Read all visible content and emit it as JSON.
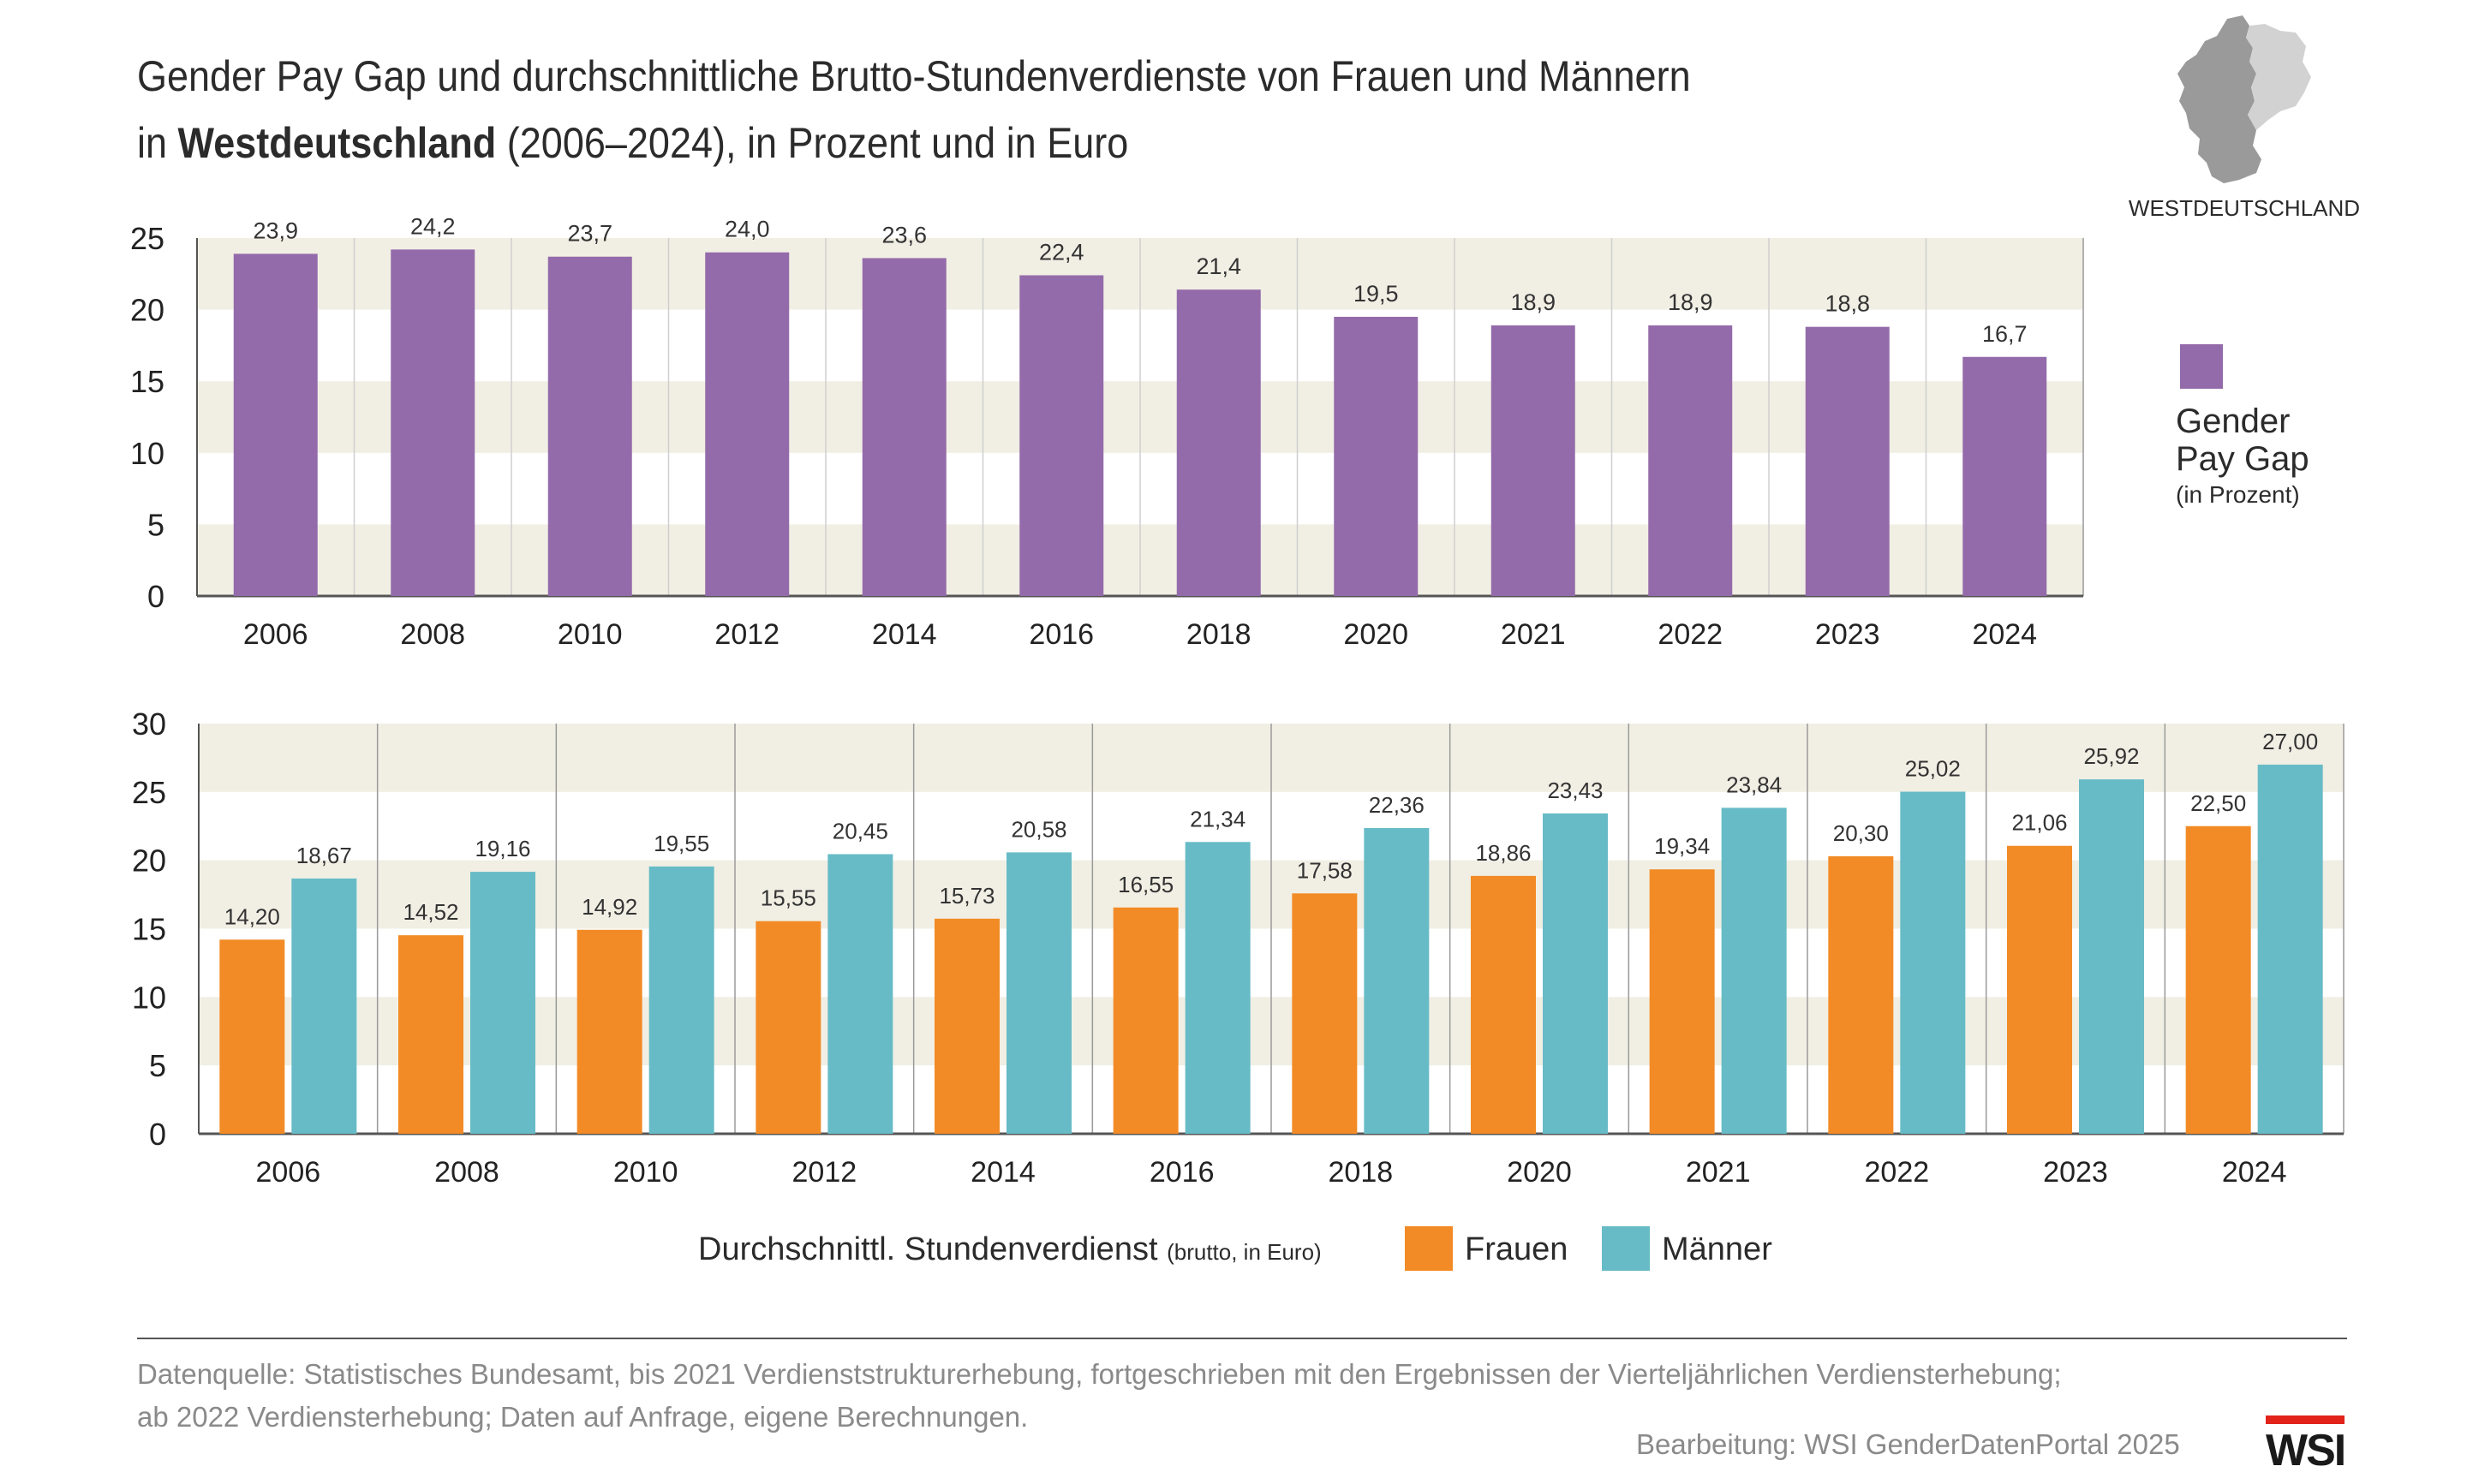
{
  "title": {
    "line1": "Gender Pay Gap und durchschnittliche Brutto-Stundenverdienste von Frauen und Männern",
    "line2_prefix": "in ",
    "line2_bold": "Westdeutschland",
    "line2_suffix": " (2006–2024), in Prozent und in Euro"
  },
  "region_label": "WESTDEUTSCHLAND",
  "legend_gap": {
    "line1": "Gender",
    "line2": "Pay Gap",
    "unit": "(in Prozent)"
  },
  "legend_earnings": {
    "label": "Durchschnittl. Stundenverdienst",
    "unit": "(brutto, in Euro)",
    "frauen": "Frauen",
    "maenner": "Männer"
  },
  "source": {
    "line1": "Datenquelle: Statistisches Bundesamt, bis 2021 Verdienststrukturerhebung, fortgeschrieben mit den Ergebnissen der Vierteljährlichen Verdiensterhebung;",
    "line2": "ab 2022 Verdiensterhebung; Daten auf Anfrage, eigene Berechnungen."
  },
  "credit": "Bearbeitung: WSI GenderDatenPortal 2025",
  "logo_text": "WSI",
  "colors": {
    "gap": "#946baa",
    "frauen": "#f28b26",
    "maenner": "#67bbc6",
    "band": "#f1efe4",
    "logo_red": "#e2231a",
    "map_west": "#9a9a9a",
    "map_east": "#d2d2d2"
  },
  "chart_data": [
    {
      "type": "bar",
      "categories": [
        "2006",
        "2008",
        "2010",
        "2012",
        "2014",
        "2016",
        "2018",
        "2020",
        "2021",
        "2022",
        "2023",
        "2024"
      ],
      "series": [
        {
          "name": "Gender Pay Gap",
          "values": [
            23.9,
            24.2,
            23.7,
            24.0,
            23.6,
            22.4,
            21.4,
            19.5,
            18.9,
            18.9,
            18.8,
            16.7
          ],
          "labels": [
            "23,9",
            "24,2",
            "23,7",
            "24,0",
            "23,6",
            "22,4",
            "21,4",
            "19,5",
            "18,9",
            "18,9",
            "18,8",
            "16,7"
          ]
        }
      ],
      "ylim": [
        0,
        25
      ],
      "yticks": [
        "0",
        "5",
        "10",
        "15",
        "20",
        "25"
      ],
      "grid": "alternating horizontal bands, vertical separators"
    },
    {
      "type": "bar",
      "categories": [
        "2006",
        "2008",
        "2010",
        "2012",
        "2014",
        "2016",
        "2018",
        "2020",
        "2021",
        "2022",
        "2023",
        "2024"
      ],
      "series": [
        {
          "name": "Frauen",
          "values": [
            14.2,
            14.52,
            14.92,
            15.55,
            15.73,
            16.55,
            17.58,
            18.86,
            19.34,
            20.3,
            21.06,
            22.5
          ],
          "labels": [
            "14,20",
            "14,52",
            "14,92",
            "15,55",
            "15,73",
            "16,55",
            "17,58",
            "18,86",
            "19,34",
            "20,30",
            "21,06",
            "22,50"
          ]
        },
        {
          "name": "Männer",
          "values": [
            18.67,
            19.16,
            19.55,
            20.45,
            20.58,
            21.34,
            22.36,
            23.43,
            23.84,
            25.02,
            25.92,
            27.0
          ],
          "labels": [
            "18,67",
            "19,16",
            "19,55",
            "20,45",
            "20,58",
            "21,34",
            "22,36",
            "23,43",
            "23,84",
            "25,02",
            "25,92",
            "27,00"
          ]
        }
      ],
      "ylim": [
        0,
        30
      ],
      "yticks": [
        "0",
        "5",
        "10",
        "15",
        "20",
        "25",
        "30"
      ],
      "grid": "alternating horizontal bands, vertical separators"
    }
  ]
}
